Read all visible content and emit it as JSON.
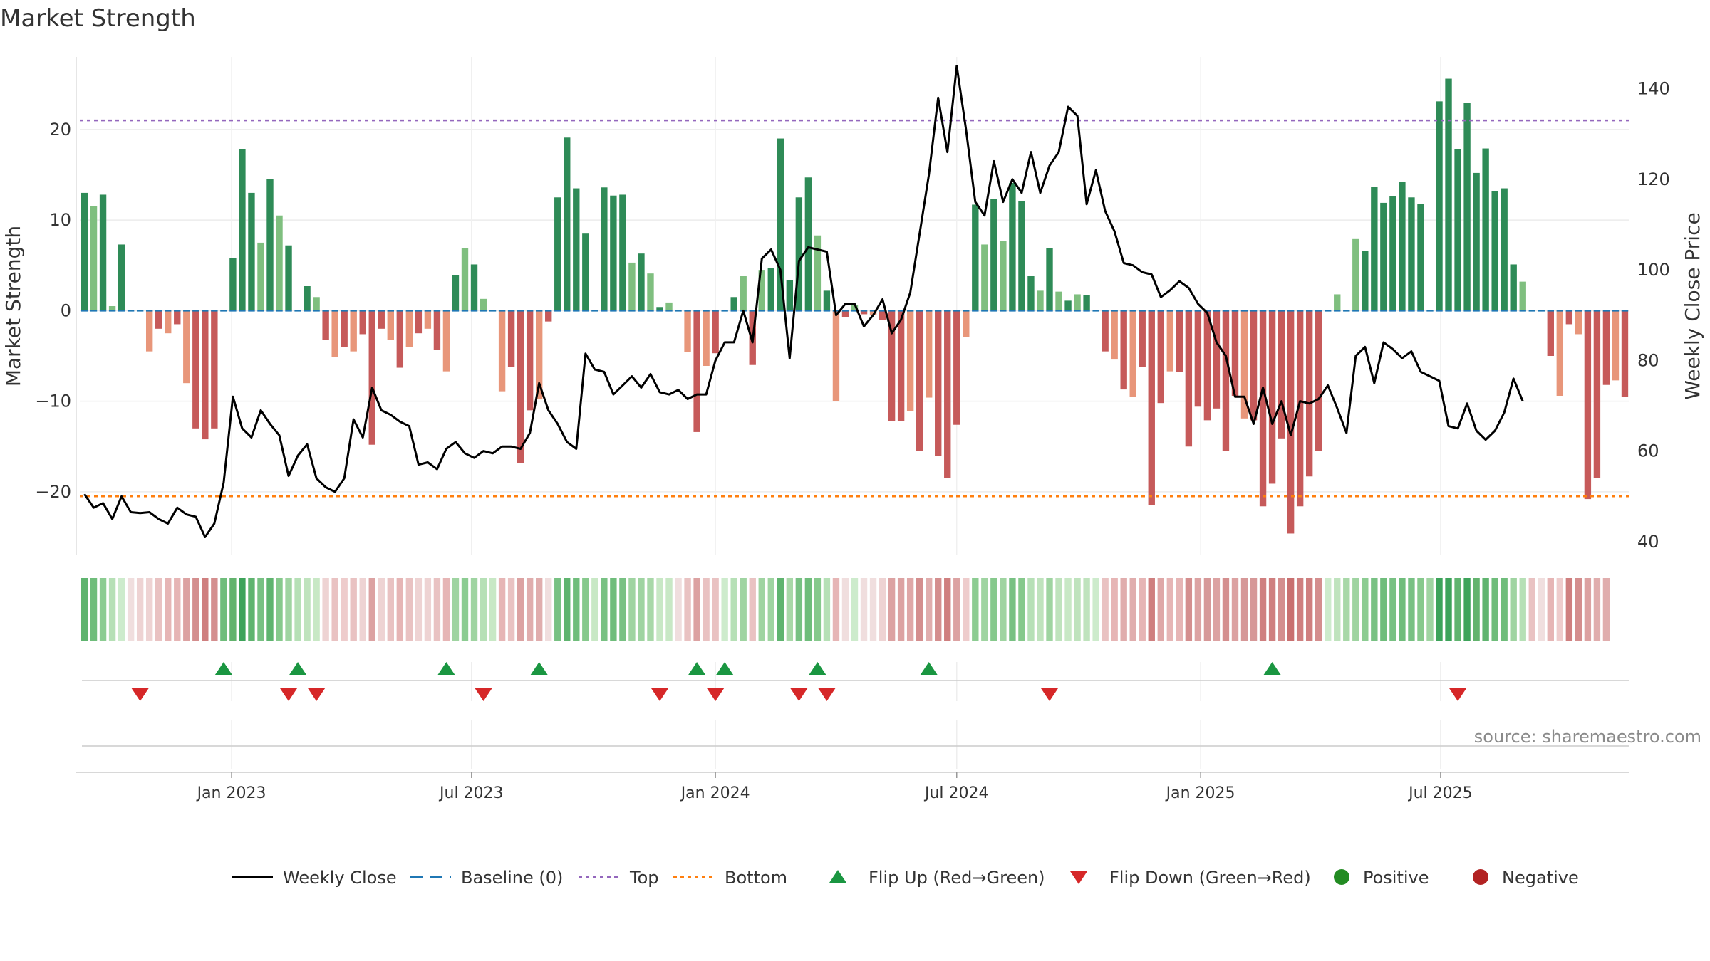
{
  "title": "Market Strength",
  "source": "source: sharemaestro.com",
  "colors": {
    "dark_green": "#2e8b57",
    "light_green": "#7fbf7f",
    "dark_red": "#c65a5a",
    "light_red": "#e8967a",
    "line": "#000000",
    "baseline": "#1f77b4",
    "top": "#9467bd",
    "bottom": "#ff7f0e",
    "flip_up": "#1a9641",
    "flip_down": "#d62728",
    "positive": "#228b22",
    "negative": "#b22222"
  },
  "chart_data": {
    "type": "bar",
    "title": "Market Strength",
    "ylabel": "Market Strength",
    "y2label": "Weekly Close Price",
    "ylim": [
      -27,
      28
    ],
    "y2lim": [
      37,
      147
    ],
    "yticks": [
      "−20",
      "−10",
      "0",
      "10",
      "20"
    ],
    "y2ticks": [
      "40",
      "60",
      "80",
      "100",
      "120",
      "140"
    ],
    "x_start": "2022-09-12",
    "x_ticks": [
      {
        "date": "2023-01-01",
        "label": "Jan 2023"
      },
      {
        "date": "2023-07-01",
        "label": "Jul 2023"
      },
      {
        "date": "2024-01-01",
        "label": "Jan 2024"
      },
      {
        "date": "2024-07-01",
        "label": "Jul 2024"
      },
      {
        "date": "2025-01-01",
        "label": "Jan 2025"
      },
      {
        "date": "2025-07-01",
        "label": "Jul 2025"
      }
    ],
    "top_level": 21,
    "bottom_level": -20.5,
    "series": [
      {
        "name": "Market Strength",
        "values": [
          13,
          11.5,
          12.8,
          0.5,
          7.3,
          0,
          0,
          -4.5,
          -2,
          -2.5,
          -1.5,
          -8,
          -13,
          -14.2,
          -13,
          0,
          5.8,
          17.8,
          13,
          7.5,
          14.5,
          10.5,
          7.2,
          0,
          2.7,
          1.5,
          -3.2,
          -5.1,
          -4,
          -4.5,
          -2.6,
          -14.8,
          -2,
          -3.2,
          -6.3,
          -4,
          -2.5,
          -2,
          -4.3,
          -6.7,
          3.9,
          6.9,
          5.1,
          1.3,
          0,
          -8.9,
          -6.2,
          -16.8,
          -11,
          -9.8,
          -1.2,
          12.5,
          19.1,
          13.5,
          8.5,
          0,
          13.6,
          12.7,
          12.8,
          5.3,
          6.3,
          4.1,
          0.4,
          0.9,
          0,
          -4.6,
          -13.4,
          -6.1,
          -4.7,
          0,
          1.5,
          3.8,
          -6,
          4.5,
          4.7,
          19,
          3.4,
          12.5,
          14.7,
          8.3,
          2.2,
          -10,
          -0.7,
          0.6,
          -0.4,
          -0.5,
          -1,
          -12.2,
          -12.2,
          -11.1,
          -15.5,
          -9.6,
          -16,
          -18.5,
          -12.6,
          -2.9,
          11.7,
          7.3,
          12.3,
          7.7,
          14.1,
          12.1,
          3.8,
          2.2,
          6.9,
          2.1,
          1.1,
          1.8,
          1.7,
          0,
          -4.5,
          -5.4,
          -8.7,
          -9.5,
          -6.2,
          -21.5,
          -10.2,
          -6.7,
          -6.8,
          -15,
          -10.6,
          -12.1,
          -10.8,
          -15.5,
          -9.4,
          -11.9,
          -12.1,
          -21.6,
          -19.1,
          -14.1,
          -24.6,
          -21.6,
          -18.3,
          -15.5,
          0,
          1.8,
          0,
          7.9,
          6.6,
          13.7,
          11.9,
          12.6,
          14.2,
          12.5,
          11.8,
          0,
          23.1,
          25.6,
          17.8,
          22.9,
          15.2,
          17.9,
          13.2,
          13.5,
          5.1,
          3.2,
          0,
          0,
          -5,
          -9.4,
          -1.5,
          -2.6,
          -20.8,
          -18.5,
          -8.2,
          -7.7,
          -9.5
        ]
      },
      {
        "name": "Weekly Close",
        "values": [
          50.5,
          47.5,
          48.5,
          45,
          50,
          46.5,
          46.3,
          46.5,
          45,
          44,
          47.5,
          46,
          45.5,
          41,
          44,
          53,
          72,
          65,
          63,
          69,
          66,
          63.5,
          54.5,
          59,
          61.5,
          54,
          52,
          51,
          54,
          67,
          63,
          74,
          69,
          68,
          66.5,
          65.5,
          57,
          57.5,
          56,
          60.5,
          62,
          59.5,
          58.5,
          60,
          59.5,
          61,
          61,
          60.5,
          64,
          75,
          69,
          66,
          62,
          60.5,
          81.5,
          78,
          77.5,
          72.5,
          74.5,
          76.5,
          74,
          77,
          73,
          72.5,
          73.5,
          71.5,
          72.5,
          72.5,
          80,
          84,
          84,
          91,
          84,
          102.5,
          104.5,
          100,
          80.5,
          102,
          105,
          104.5,
          104,
          90,
          92.5,
          92.5,
          87.5,
          90,
          93.5,
          86,
          89,
          95,
          108,
          121,
          138,
          126,
          145,
          131,
          115,
          112,
          124,
          115,
          120,
          117,
          126,
          117,
          123,
          126,
          136,
          134,
          114.5,
          122,
          113,
          108.5,
          101.5,
          101,
          99.5,
          99,
          94,
          95.5,
          97.5,
          96,
          92.5,
          90.5,
          84,
          81,
          72,
          72,
          66,
          74,
          66,
          71,
          63.5,
          71,
          70.5,
          71.5,
          74.5,
          69.5,
          64,
          81,
          83,
          75,
          84,
          82.5,
          80.5,
          82,
          77.5,
          76.5,
          75.5,
          65.5,
          65,
          70.5,
          64.5,
          62.5,
          64.5,
          68.5,
          76,
          71
        ]
      }
    ],
    "heatmap_strip": [
      "#5fb46f",
      "#6fbd7b",
      "#8ccc92",
      "#b6e0b6",
      "#cdebcc",
      "#f0dede",
      "#eed3d3",
      "#eed3d3",
      "#e9c2c2",
      "#e6b5b5",
      "#e6b5b5",
      "#dca2a2",
      "#d48e8e",
      "#cf7f7f",
      "#d48e8e",
      "#6fbd7b",
      "#62b36d",
      "#3da35a",
      "#5fb46f",
      "#78c183",
      "#5fb46f",
      "#86c98c",
      "#9fd4a1",
      "#b6e0b6",
      "#bfe3bd",
      "#c8e8c5",
      "#eed3d3",
      "#e9c2c2",
      "#eecccc",
      "#e9c2c2",
      "#eed3d3",
      "#dca2a2",
      "#eed3d3",
      "#e9c2c2",
      "#e6b5b5",
      "#e9c2c2",
      "#eed3d3",
      "#eed3d3",
      "#e9c2c2",
      "#e6b5b5",
      "#9fd4a1",
      "#8ccc92",
      "#9fd4a1",
      "#b6e0b6",
      "#c8e8c5",
      "#e6b5b5",
      "#e9c2c2",
      "#dca2a2",
      "#e0adad",
      "#e0adad",
      "#f0dede",
      "#78c183",
      "#5fb46f",
      "#6fbd7b",
      "#86c98c",
      "#c8e8c5",
      "#78c183",
      "#6fbd7b",
      "#78c183",
      "#9fd4a1",
      "#9fd4a1",
      "#a8d8a8",
      "#c8e8c5",
      "#c8e8c5",
      "#f0dede",
      "#e9c2c2",
      "#dca2a2",
      "#e9c2c2",
      "#e9c2c2",
      "#cdebcc",
      "#b6e0b6",
      "#9fd4a1",
      "#e9c2c2",
      "#9fd4a1",
      "#9fd4a1",
      "#5fb46f",
      "#a8d8a8",
      "#78c183",
      "#6fbd7b",
      "#86c98c",
      "#b6e0b6",
      "#e6b5b5",
      "#f0dede",
      "#cdebcc",
      "#f0dede",
      "#f0dede",
      "#eed3d3",
      "#dca2a2",
      "#dca2a2",
      "#dfa7a7",
      "#d48e8e",
      "#e0adad",
      "#d48e8e",
      "#cf7f7f",
      "#dca2a2",
      "#eecccc",
      "#8ccc92",
      "#9fd4a1",
      "#86c98c",
      "#9fd4a1",
      "#78c183",
      "#86c98c",
      "#b6e0b6",
      "#bfe3bd",
      "#9fd4a1",
      "#bfe3bd",
      "#c8e8c5",
      "#bfe3bd",
      "#bfe3bd",
      "#cdebcc",
      "#e9c2c2",
      "#e6b5b5",
      "#e0adad",
      "#e0adad",
      "#e6b5b5",
      "#cf7f7f",
      "#dfa7a7",
      "#e6b5b5",
      "#e6b5b5",
      "#d48e8e",
      "#dca2a2",
      "#d69898",
      "#dca2a2",
      "#d48e8e",
      "#dca2a2",
      "#d69898",
      "#d69898",
      "#cf7f7f",
      "#cf7f7f",
      "#d48e8e",
      "#c97070",
      "#cf7f7f",
      "#cf7f7f",
      "#d48e8e",
      "#cdebcc",
      "#bfe3bd",
      "#a8d8a8",
      "#9fd4a1",
      "#8ccc92",
      "#78c183",
      "#6fbd7b",
      "#78c183",
      "#6fbd7b",
      "#78c183",
      "#86c98c",
      "#9fd4a1",
      "#3da35a",
      "#3da35a",
      "#5fb46f",
      "#3da35a",
      "#62b36d",
      "#5fb46f",
      "#6fbd7b",
      "#6fbd7b",
      "#9fd4a1",
      "#b6e0b6",
      "#e9c2c2",
      "#f0dede",
      "#e6b5b5",
      "#eecccc",
      "#cf7f7f",
      "#d48e8e",
      "#dca2a2",
      "#e0adad",
      "#e0adad"
    ],
    "flip_up_weeks": [
      15,
      23,
      39,
      49,
      66,
      69,
      79,
      91,
      128
    ],
    "flip_down_weeks": [
      6,
      22,
      25,
      43,
      62,
      68,
      77,
      80,
      104,
      148
    ],
    "legend": [
      {
        "label": "Weekly Close",
        "kind": "line"
      },
      {
        "label": "Baseline (0)",
        "kind": "dash"
      },
      {
        "label": "Top",
        "kind": "dot-purple"
      },
      {
        "label": "Bottom",
        "kind": "dot-orange"
      },
      {
        "label": "Flip Up (Red→Green)",
        "kind": "tri-up"
      },
      {
        "label": "Flip Down (Green→Red)",
        "kind": "tri-down"
      },
      {
        "label": "Positive",
        "kind": "circle-green"
      },
      {
        "label": "Negative",
        "kind": "circle-red"
      }
    ]
  }
}
